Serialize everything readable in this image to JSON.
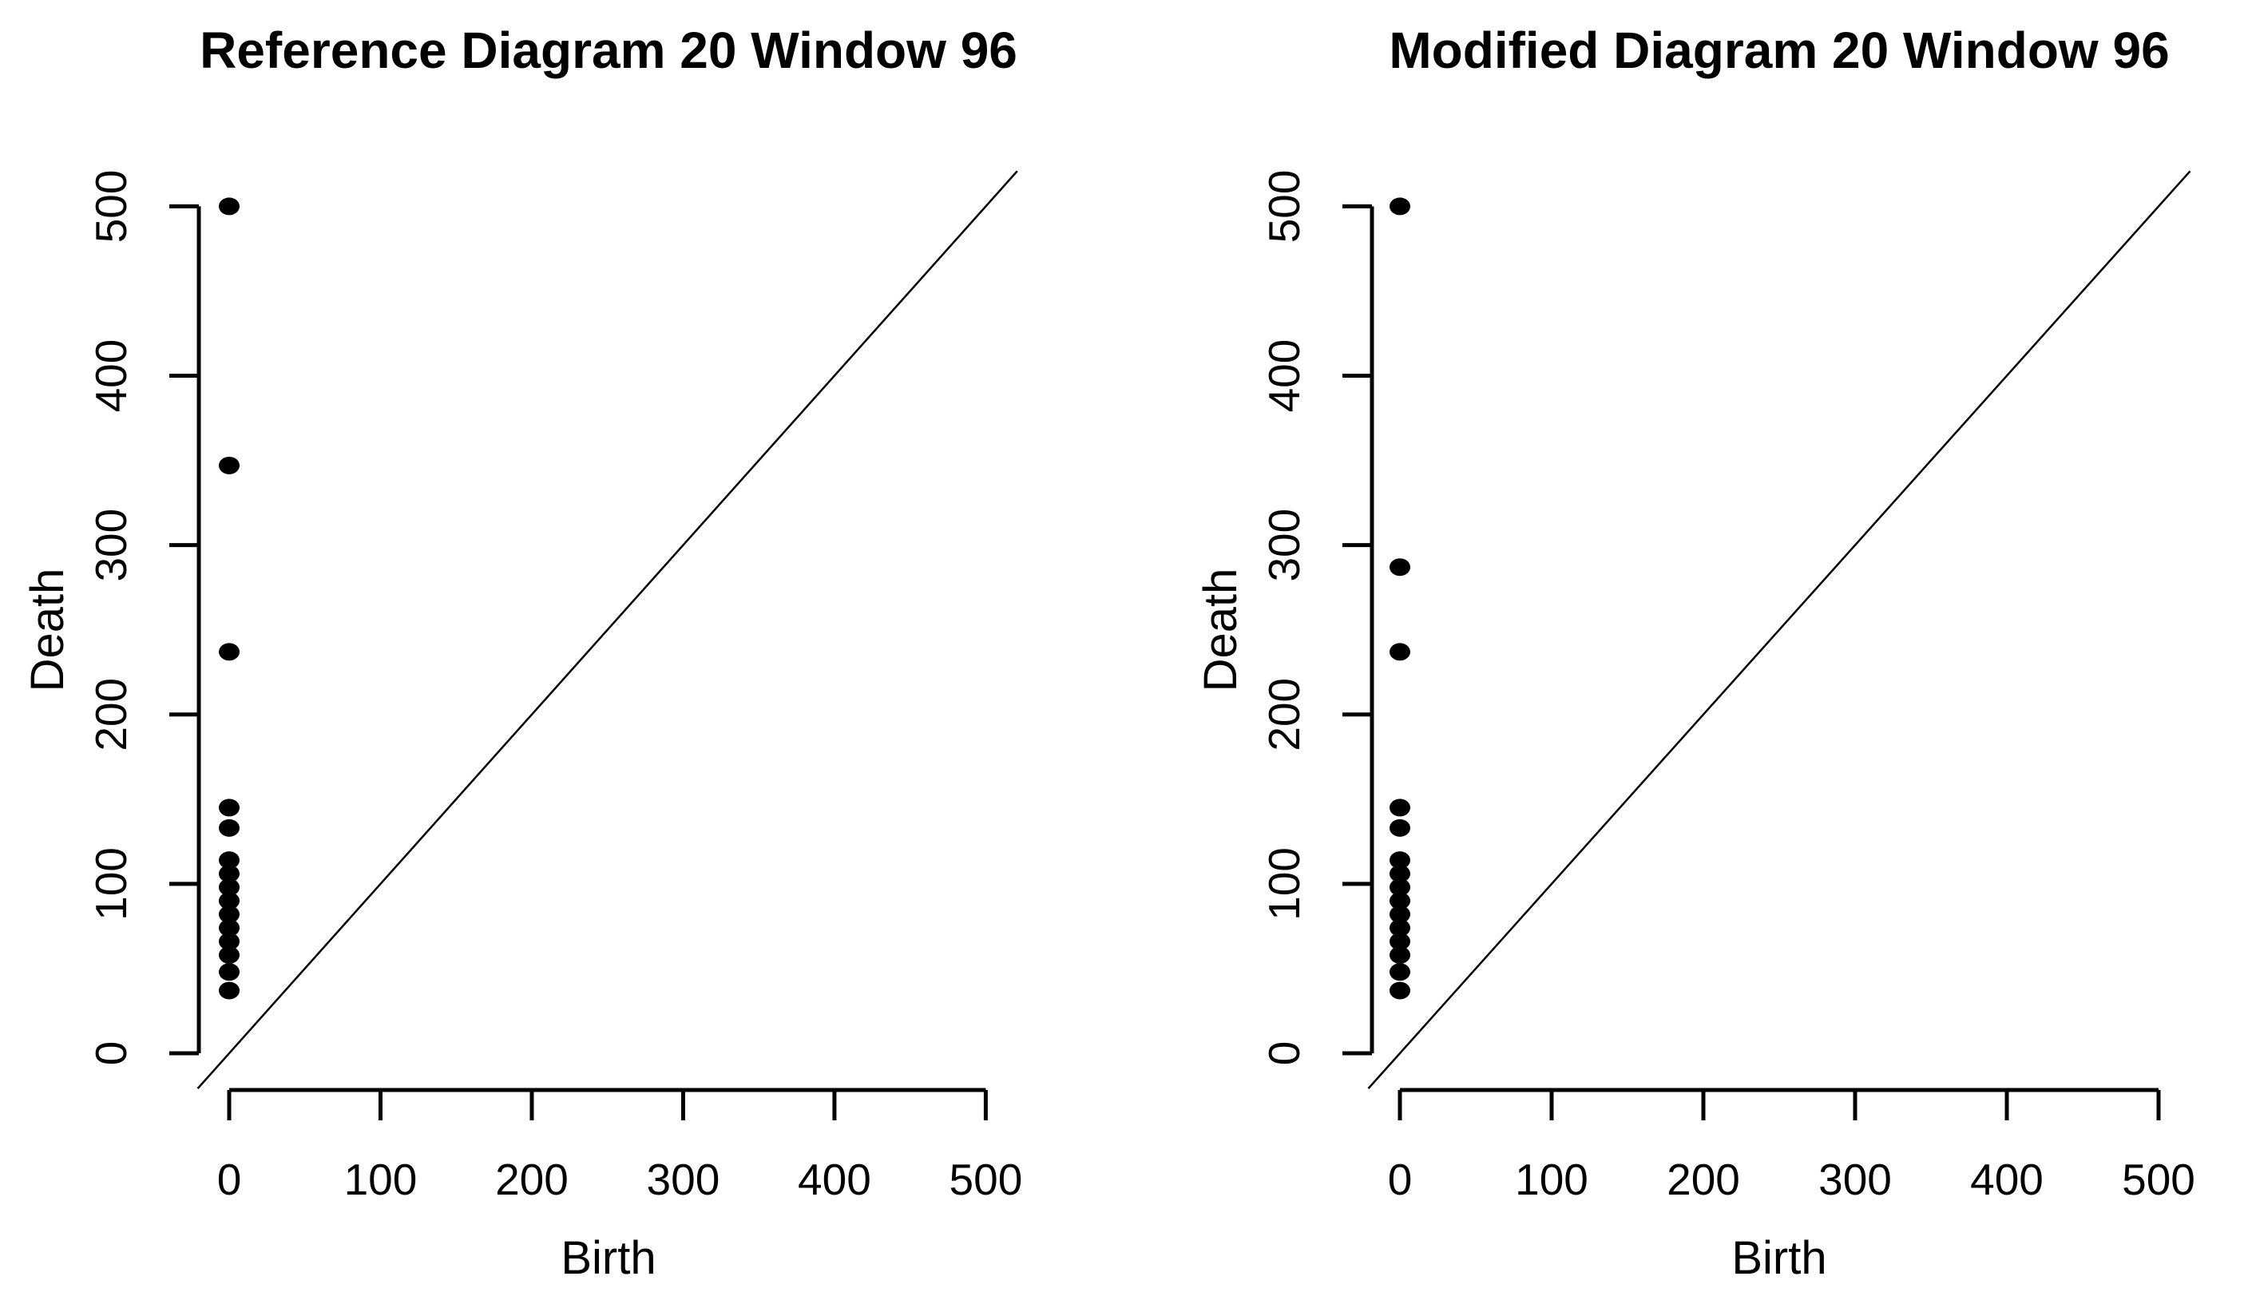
{
  "figure": {
    "background": "#ffffff",
    "foreground": "#000000"
  },
  "chart_data": [
    {
      "type": "scatter",
      "title": "Reference Diagram 20 Window 96",
      "xlabel": "Birth",
      "ylabel": "Death",
      "xlim": [
        0,
        500
      ],
      "ylim": [
        0,
        500
      ],
      "xticks": [
        0,
        100,
        200,
        300,
        400,
        500
      ],
      "yticks": [
        0,
        100,
        200,
        300,
        400,
        500
      ],
      "grid": false,
      "diagonal_line": true,
      "point_color": "#000000",
      "points": [
        {
          "birth": 0,
          "death": 500
        },
        {
          "birth": 0,
          "death": 347
        },
        {
          "birth": 0,
          "death": 237
        },
        {
          "birth": 0,
          "death": 145
        },
        {
          "birth": 0,
          "death": 133
        },
        {
          "birth": 0,
          "death": 114
        },
        {
          "birth": 0,
          "death": 106
        },
        {
          "birth": 0,
          "death": 98
        },
        {
          "birth": 0,
          "death": 90
        },
        {
          "birth": 0,
          "death": 82
        },
        {
          "birth": 0,
          "death": 74
        },
        {
          "birth": 0,
          "death": 66
        },
        {
          "birth": 0,
          "death": 58
        },
        {
          "birth": 0,
          "death": 48
        },
        {
          "birth": 0,
          "death": 37
        }
      ]
    },
    {
      "type": "scatter",
      "title": "Modified Diagram 20 Window 96",
      "xlabel": "Birth",
      "ylabel": "Death",
      "xlim": [
        0,
        500
      ],
      "ylim": [
        0,
        500
      ],
      "xticks": [
        0,
        100,
        200,
        300,
        400,
        500
      ],
      "yticks": [
        0,
        100,
        200,
        300,
        400,
        500
      ],
      "grid": false,
      "diagonal_line": true,
      "point_color": "#000000",
      "points": [
        {
          "birth": 0,
          "death": 500
        },
        {
          "birth": 0,
          "death": 287
        },
        {
          "birth": 0,
          "death": 237
        },
        {
          "birth": 0,
          "death": 145
        },
        {
          "birth": 0,
          "death": 133
        },
        {
          "birth": 0,
          "death": 114
        },
        {
          "birth": 0,
          "death": 106
        },
        {
          "birth": 0,
          "death": 98
        },
        {
          "birth": 0,
          "death": 90
        },
        {
          "birth": 0,
          "death": 82
        },
        {
          "birth": 0,
          "death": 74
        },
        {
          "birth": 0,
          "death": 66
        },
        {
          "birth": 0,
          "death": 58
        },
        {
          "birth": 0,
          "death": 48
        },
        {
          "birth": 0,
          "death": 37
        }
      ]
    }
  ]
}
